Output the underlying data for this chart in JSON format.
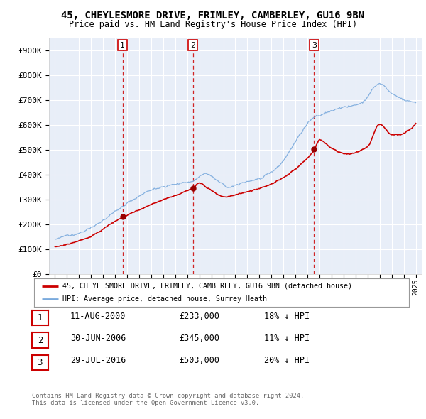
{
  "title": "45, CHEYLESMORE DRIVE, FRIMLEY, CAMBERLEY, GU16 9BN",
  "subtitle": "Price paid vs. HM Land Registry's House Price Index (HPI)",
  "background_color": "#ffffff",
  "plot_bg_color": "#e8eef8",
  "grid_color": "#ffffff",
  "sale_labels": [
    "1",
    "2",
    "3"
  ],
  "sale_prices": [
    233000,
    345000,
    503000
  ],
  "legend_entries": [
    "45, CHEYLESMORE DRIVE, FRIMLEY, CAMBERLEY, GU16 9BN (detached house)",
    "HPI: Average price, detached house, Surrey Heath"
  ],
  "table_rows": [
    {
      "num": "1",
      "date": "11-AUG-2000",
      "price": "£233,000",
      "pct": "18% ↓ HPI"
    },
    {
      "num": "2",
      "date": "30-JUN-2006",
      "price": "£345,000",
      "pct": "11% ↓ HPI"
    },
    {
      "num": "3",
      "date": "29-JUL-2016",
      "price": "£503,000",
      "pct": "20% ↓ HPI"
    }
  ],
  "footer_line1": "Contains HM Land Registry data © Crown copyright and database right 2024.",
  "footer_line2": "This data is licensed under the Open Government Licence v3.0.",
  "red_line_color": "#cc0000",
  "blue_line_color": "#7aaadd",
  "vline_color": "#cc0000",
  "ylim": [
    0,
    950000
  ],
  "yticks": [
    0,
    100000,
    200000,
    300000,
    400000,
    500000,
    600000,
    700000,
    800000,
    900000
  ],
  "ytick_labels": [
    "£0",
    "£100K",
    "£200K",
    "£300K",
    "£400K",
    "£500K",
    "£600K",
    "£700K",
    "£800K",
    "£900K"
  ]
}
